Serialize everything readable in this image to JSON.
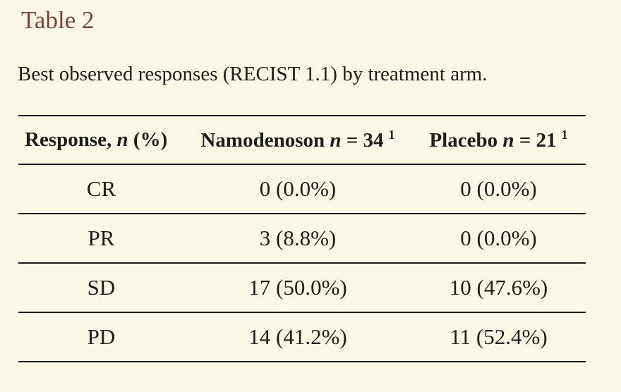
{
  "page": {
    "title": "Table 2",
    "caption": "Best observed responses (RECIST 1.1) by treatment arm.",
    "colors": {
      "background": "#fbf8e8",
      "title_accent": "#7a4632",
      "text": "#1d1d1d",
      "rule": "#1d1d1d"
    }
  },
  "table": {
    "header": {
      "response": {
        "pre": "Response, ",
        "n_symbol": "n",
        "post": " (%)"
      },
      "namodenoson": {
        "drug": "Namodenoson ",
        "n_symbol": "n",
        "count": " = 34",
        "footnote_marker": "1"
      },
      "placebo": {
        "drug": "Placebo ",
        "n_symbol": "n",
        "count": " = 21",
        "footnote_marker": "1"
      }
    },
    "rows": [
      {
        "response": "CR",
        "namodenoson": "0 (0.0%)",
        "placebo": "0 (0.0%)"
      },
      {
        "response": "PR",
        "namodenoson": "3 (8.8%)",
        "placebo": "0 (0.0%)"
      },
      {
        "response": "SD",
        "namodenoson": "17 (50.0%)",
        "placebo": "10 (47.6%)"
      },
      {
        "response": "PD",
        "namodenoson": "14 (41.2%)",
        "placebo": "11 (52.4%)"
      }
    ]
  }
}
